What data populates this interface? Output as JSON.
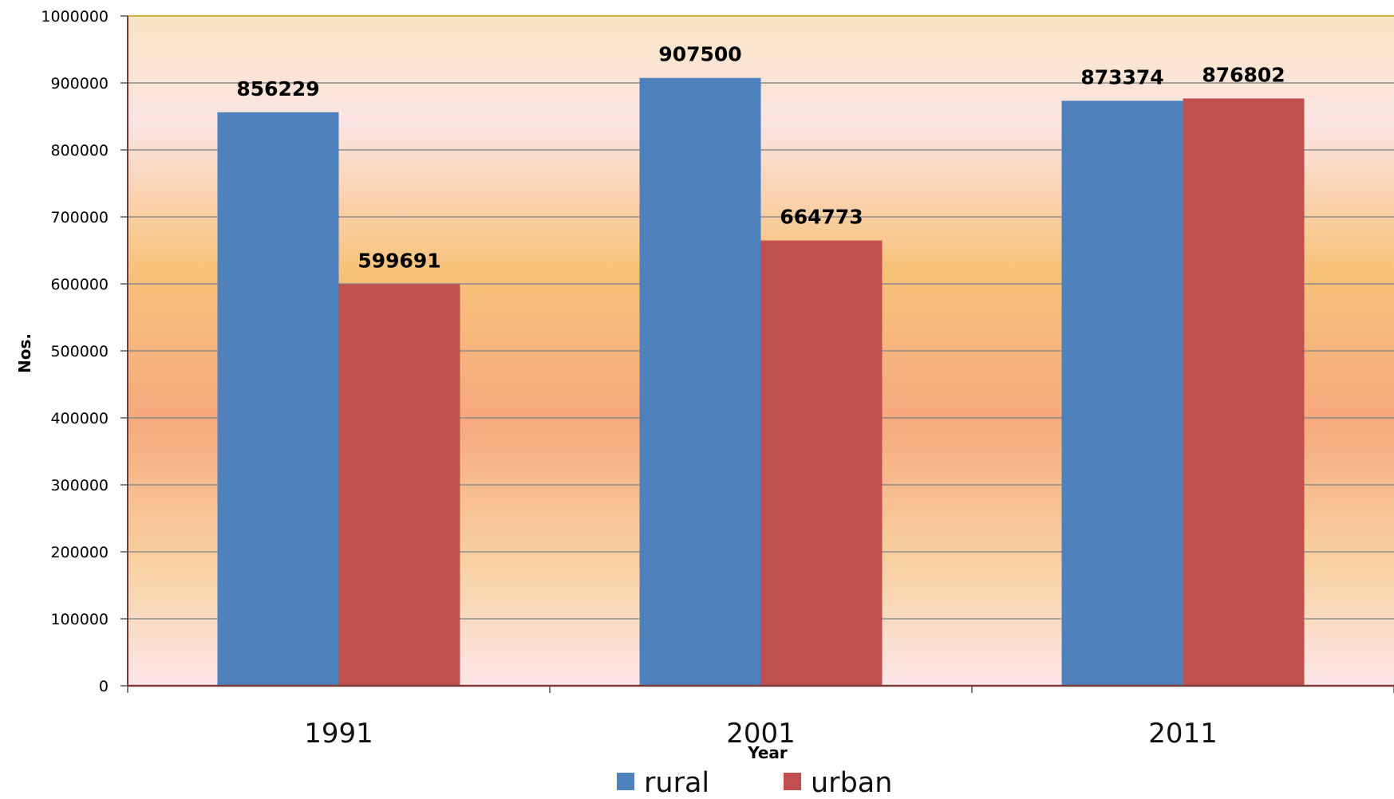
{
  "chart_data": {
    "type": "bar",
    "title": "",
    "xlabel": "Year",
    "ylabel": "Nos.",
    "ylim": [
      0,
      1000000
    ],
    "yticks": [
      0,
      100000,
      200000,
      300000,
      400000,
      500000,
      600000,
      700000,
      800000,
      900000,
      1000000
    ],
    "categories": [
      "1991",
      "2001",
      "2011"
    ],
    "series": [
      {
        "name": "rural",
        "values": [
          856229,
          907500,
          873374
        ],
        "color": "#4f81bd"
      },
      {
        "name": "urban",
        "values": [
          599691,
          664773,
          876802
        ],
        "color": "#c0504d"
      }
    ],
    "grid": true,
    "legend": "bottom",
    "background": "gradient-orange",
    "colors": {
      "gridline": "#8c8c8c",
      "axis": "#7a3a3a",
      "plot_border_top": "#c9b040"
    }
  }
}
